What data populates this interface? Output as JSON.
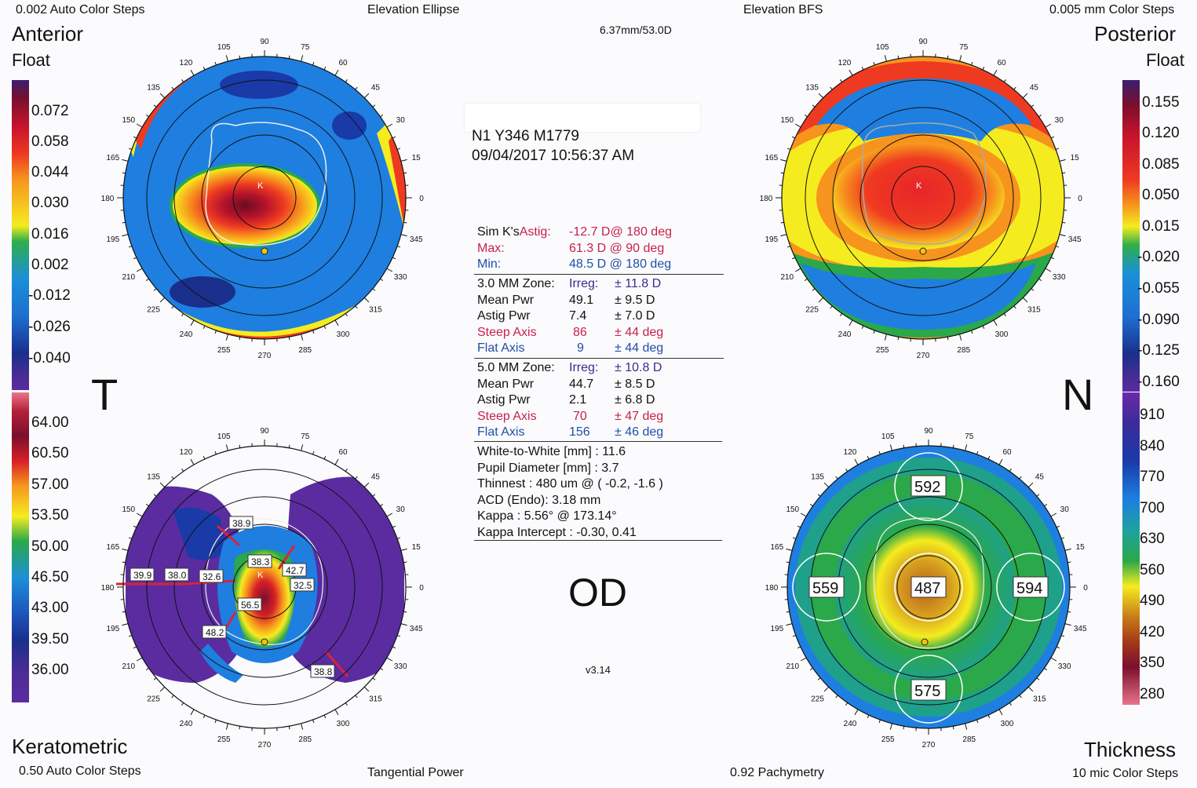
{
  "corners": {
    "top_left_steps": "0.002 Auto Color Steps",
    "top_left_title": "Anterior",
    "top_left_sub": "Float",
    "top_mid_left": "Elevation Ellipse",
    "top_mid_right": "Elevation BFS",
    "top_right_steps": "0.005 mm Color Steps",
    "top_right_title": "Posterior",
    "top_right_sub": "Float",
    "bottom_left_title": "Keratometric",
    "bottom_left_steps": "0.50 Auto Color Steps",
    "bottom_mid_left": "Tangential Power",
    "bottom_mid_right": "0.92 Pachymetry",
    "bottom_right_title": "Thickness",
    "bottom_right_steps": "10 mic Color Steps"
  },
  "header": {
    "bfs": "6.37mm/53.0D",
    "patient": "N1 Y346 M1779",
    "datetime": "09/04/2017 10:56:37 AM"
  },
  "orientation": {
    "temporal": "T",
    "nasal": "N",
    "eye": "OD",
    "version": "v3.14"
  },
  "scales": {
    "left_top": [
      "0.072",
      "0.058",
      "0.044",
      "0.030",
      "0.016",
      "0.002",
      "-0.012",
      "-0.026",
      "-0.040"
    ],
    "left_bottom": [
      "64.00",
      "60.50",
      "57.00",
      "53.50",
      "50.00",
      "46.50",
      "43.00",
      "39.50",
      "36.00"
    ],
    "right_top": [
      "0.155",
      "0.120",
      "0.085",
      "0.050",
      "0.015",
      "-0.020",
      "-0.055",
      "-0.090",
      "-0.125",
      "-0.160"
    ],
    "right_bottom": [
      "910",
      "840",
      "770",
      "700",
      "630",
      "560",
      "490",
      "420",
      "350",
      "280"
    ]
  },
  "angles": [
    "90",
    "75",
    "60",
    "45",
    "30",
    "15",
    "0",
    "345",
    "330",
    "315",
    "300",
    "285",
    "270",
    "255",
    "240",
    "225",
    "210",
    "195",
    "180",
    "165",
    "150",
    "135",
    "120",
    "105"
  ],
  "simk": {
    "label": "Sim K's",
    "astig_label": "Astig:",
    "astig_value": "-12.7 D@ 180 deg",
    "max_label": "Max:",
    "max_value": "61.3 D  @ 90 deg",
    "min_label": "Min:",
    "min_value": "48.5 D  @ 180 deg"
  },
  "zone3": {
    "title": "3.0 MM Zone:",
    "irreg_label": "Irreg:",
    "irreg_value": "± 11.8 D",
    "mean_label": "Mean Pwr",
    "mean_value": "49.1",
    "mean_pm": "± 9.5 D",
    "astig_label": "Astig Pwr",
    "astig_value": "7.4",
    "astig_pm": "± 7.0 D",
    "steep_label": "Steep Axis",
    "steep_value": "86",
    "steep_pm": "± 44 deg",
    "flat_label": "Flat Axis",
    "flat_value": "9",
    "flat_pm": "± 44 deg"
  },
  "zone5": {
    "title": "5.0 MM Zone:",
    "irreg_label": "Irreg:",
    "irreg_value": "± 10.8 D",
    "mean_label": "Mean Pwr",
    "mean_value": "44.7",
    "mean_pm": "± 8.5 D",
    "astig_label": "Astig Pwr",
    "astig_value": "2.1",
    "astig_pm": "± 6.8 D",
    "steep_label": "Steep Axis",
    "steep_value": "70",
    "steep_pm": "± 47 deg",
    "flat_label": "Flat Axis",
    "flat_value": "156",
    "flat_pm": "± 46 deg"
  },
  "misc": {
    "wtw": "White-to-White [mm] : 11.6",
    "pupil": "Pupil Diameter [mm] :  3.7",
    "thinnest": "Thinnest : 480 um @ ( -0.2, -1.6 )",
    "acd": "ACD (Endo): 3.18 mm",
    "kappa": "Kappa : 5.56° @ 173.14°",
    "kappa_int": "Kappa Intercept : -0.30, 0.41"
  },
  "keratometric_callouts": [
    "38.9",
    "39.9",
    "38.0",
    "32.6",
    "38.3",
    "42.7",
    "32.5",
    "56.5",
    "48.2",
    "38.8"
  ],
  "thickness_values": {
    "top": "592",
    "left": "559",
    "center": "487",
    "right": "594",
    "bottom": "575"
  },
  "marker_label": "K",
  "colors": {
    "dark_red": "#6a0d1e",
    "red": "#e8242a",
    "orange": "#f5841f",
    "yellow": "#f5ec1f",
    "green": "#2aa84a",
    "blue": "#1e7fe0",
    "dark_blue": "#1a2f8c",
    "purple": "#5a2ca0"
  }
}
